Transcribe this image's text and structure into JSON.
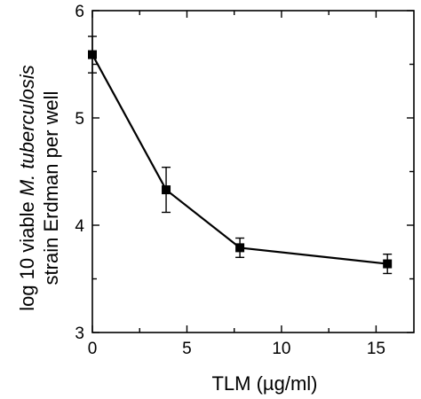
{
  "chart_data": {
    "type": "line",
    "xlabel": "TLM (µg/ml)",
    "ylabel_line1_prefix": "log 10 viable ",
    "ylabel_line1_italic": "M. tuberculosis",
    "ylabel_line2": "strain Erdman per well",
    "xlim": [
      0,
      17
    ],
    "ylim": [
      3,
      6
    ],
    "x_ticks": [
      0,
      5,
      10,
      15
    ],
    "x_minor_ticks": [
      2.5,
      7.5,
      12.5
    ],
    "y_ticks": [
      3,
      4,
      5,
      6
    ],
    "y_minor_ticks": [
      3.5,
      4.5,
      5.5
    ],
    "grid": false,
    "series": [
      {
        "x": [
          0,
          3.9,
          7.8,
          15.6
        ],
        "y": [
          5.59,
          4.33,
          3.79,
          3.64
        ],
        "err": [
          0.17,
          0.21,
          0.09,
          0.09
        ]
      }
    ]
  }
}
